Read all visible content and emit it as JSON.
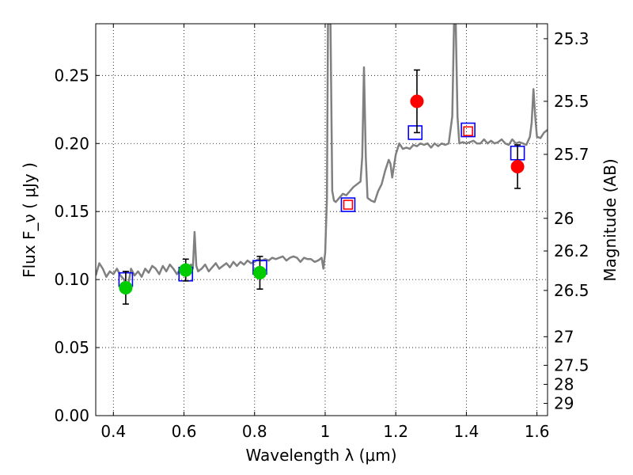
{
  "chart_data": {
    "type": "scatter",
    "xlabel": "Wavelength  λ (μm)",
    "ylabel": "Flux  F_ν  ( μJy )",
    "y2label": "Magnitude (AB)",
    "xlim": [
      0.35,
      1.63
    ],
    "ylim": [
      0.0,
      0.288
    ],
    "grid": true,
    "x_ticks": [
      "0.4",
      "0.6",
      "0.8",
      "1",
      "1.2",
      "1.4",
      "1.6"
    ],
    "x_tick_values": [
      0.4,
      0.6,
      0.8,
      1.0,
      1.2,
      1.4,
      1.6
    ],
    "y_ticks": [
      "0.00",
      "0.05",
      "0.10",
      "0.15",
      "0.20",
      "0.25"
    ],
    "y_tick_values": [
      0.0,
      0.05,
      0.1,
      0.15,
      0.2,
      0.25
    ],
    "mag_ticks": [
      {
        "label": "25.3",
        "flux": 0.277
      },
      {
        "label": "25.5",
        "flux": 0.231
      },
      {
        "label": "25.7",
        "flux": 0.192
      },
      {
        "label": "26",
        "flux": 0.145
      },
      {
        "label": "26.2",
        "flux": 0.121
      },
      {
        "label": "26.5",
        "flux": 0.092
      },
      {
        "label": "27",
        "flux": 0.058
      },
      {
        "label": "27.5",
        "flux": 0.037
      },
      {
        "label": "28",
        "flux": 0.023
      },
      {
        "label": "29",
        "flux": 0.009
      }
    ],
    "series": [
      {
        "kind": "line",
        "color": "#808080",
        "x": [
          0.35,
          0.36,
          0.37,
          0.38,
          0.39,
          0.4,
          0.41,
          0.42,
          0.43,
          0.44,
          0.45,
          0.46,
          0.47,
          0.48,
          0.49,
          0.5,
          0.51,
          0.52,
          0.53,
          0.54,
          0.55,
          0.56,
          0.57,
          0.58,
          0.59,
          0.6,
          0.61,
          0.62,
          0.625,
          0.63,
          0.635,
          0.64,
          0.65,
          0.66,
          0.67,
          0.68,
          0.69,
          0.7,
          0.71,
          0.72,
          0.73,
          0.74,
          0.75,
          0.76,
          0.77,
          0.78,
          0.79,
          0.8,
          0.81,
          0.82,
          0.83,
          0.84,
          0.85,
          0.86,
          0.87,
          0.88,
          0.89,
          0.9,
          0.91,
          0.92,
          0.93,
          0.94,
          0.95,
          0.96,
          0.97,
          0.98,
          0.99,
          0.995,
          1.0,
          1.005,
          1.008,
          1.01,
          1.015,
          1.02,
          1.025,
          1.03,
          1.04,
          1.05,
          1.06,
          1.07,
          1.08,
          1.09,
          1.1,
          1.105,
          1.11,
          1.115,
          1.12,
          1.13,
          1.14,
          1.15,
          1.16,
          1.17,
          1.18,
          1.185,
          1.19,
          1.2,
          1.21,
          1.22,
          1.23,
          1.24,
          1.25,
          1.26,
          1.27,
          1.28,
          1.29,
          1.3,
          1.31,
          1.32,
          1.33,
          1.34,
          1.35,
          1.36,
          1.365,
          1.37,
          1.375,
          1.38,
          1.39,
          1.4,
          1.41,
          1.42,
          1.43,
          1.44,
          1.45,
          1.46,
          1.47,
          1.48,
          1.49,
          1.5,
          1.51,
          1.52,
          1.53,
          1.54,
          1.55,
          1.56,
          1.57,
          1.58,
          1.585,
          1.59,
          1.595,
          1.6,
          1.61,
          1.62,
          1.63
        ],
        "y": [
          0.103,
          0.112,
          0.108,
          0.102,
          0.106,
          0.104,
          0.108,
          0.103,
          0.1,
          0.093,
          0.108,
          0.103,
          0.106,
          0.102,
          0.108,
          0.105,
          0.11,
          0.108,
          0.104,
          0.11,
          0.106,
          0.111,
          0.108,
          0.104,
          0.108,
          0.108,
          0.106,
          0.111,
          0.108,
          0.135,
          0.11,
          0.106,
          0.108,
          0.111,
          0.106,
          0.109,
          0.112,
          0.108,
          0.11,
          0.112,
          0.109,
          0.113,
          0.11,
          0.113,
          0.111,
          0.114,
          0.112,
          0.113,
          0.115,
          0.114,
          0.115,
          0.114,
          0.116,
          0.115,
          0.116,
          0.117,
          0.114,
          0.116,
          0.117,
          0.116,
          0.113,
          0.116,
          0.115,
          0.115,
          0.113,
          0.114,
          0.116,
          0.108,
          0.12,
          0.16,
          0.288,
          0.288,
          0.288,
          0.165,
          0.158,
          0.157,
          0.16,
          0.163,
          0.162,
          0.165,
          0.168,
          0.17,
          0.172,
          0.19,
          0.256,
          0.19,
          0.16,
          0.158,
          0.157,
          0.165,
          0.17,
          0.18,
          0.188,
          0.185,
          0.175,
          0.192,
          0.2,
          0.196,
          0.197,
          0.196,
          0.199,
          0.198,
          0.2,
          0.199,
          0.2,
          0.197,
          0.2,
          0.198,
          0.2,
          0.199,
          0.2,
          0.22,
          0.288,
          0.288,
          0.22,
          0.2,
          0.201,
          0.2,
          0.201,
          0.202,
          0.2,
          0.2,
          0.203,
          0.2,
          0.202,
          0.2,
          0.201,
          0.203,
          0.2,
          0.199,
          0.203,
          0.2,
          0.201,
          0.2,
          0.199,
          0.205,
          0.215,
          0.24,
          0.22,
          0.205,
          0.204,
          0.208,
          0.21
        ]
      },
      {
        "kind": "squares",
        "color": "#0000ff",
        "x": [
          0.435,
          0.605,
          0.815,
          1.065,
          1.255,
          1.405,
          1.545
        ],
        "y": [
          0.1,
          0.104,
          0.109,
          0.155,
          0.208,
          0.21,
          0.193
        ]
      },
      {
        "kind": "squares",
        "color": "#ff0000",
        "x": [
          1.065,
          1.405
        ],
        "y": [
          0.155,
          0.209
        ]
      },
      {
        "kind": "errorbar",
        "color": "#00cc00",
        "x": [
          0.435,
          0.605,
          0.815
        ],
        "y": [
          0.094,
          0.107,
          0.105
        ],
        "err": [
          0.012,
          0.008,
          0.012
        ]
      },
      {
        "kind": "errorbar",
        "color": "#ff0000",
        "x": [
          1.26,
          1.545
        ],
        "y": [
          0.231,
          0.183
        ],
        "err": [
          0.023,
          0.016
        ]
      }
    ]
  }
}
